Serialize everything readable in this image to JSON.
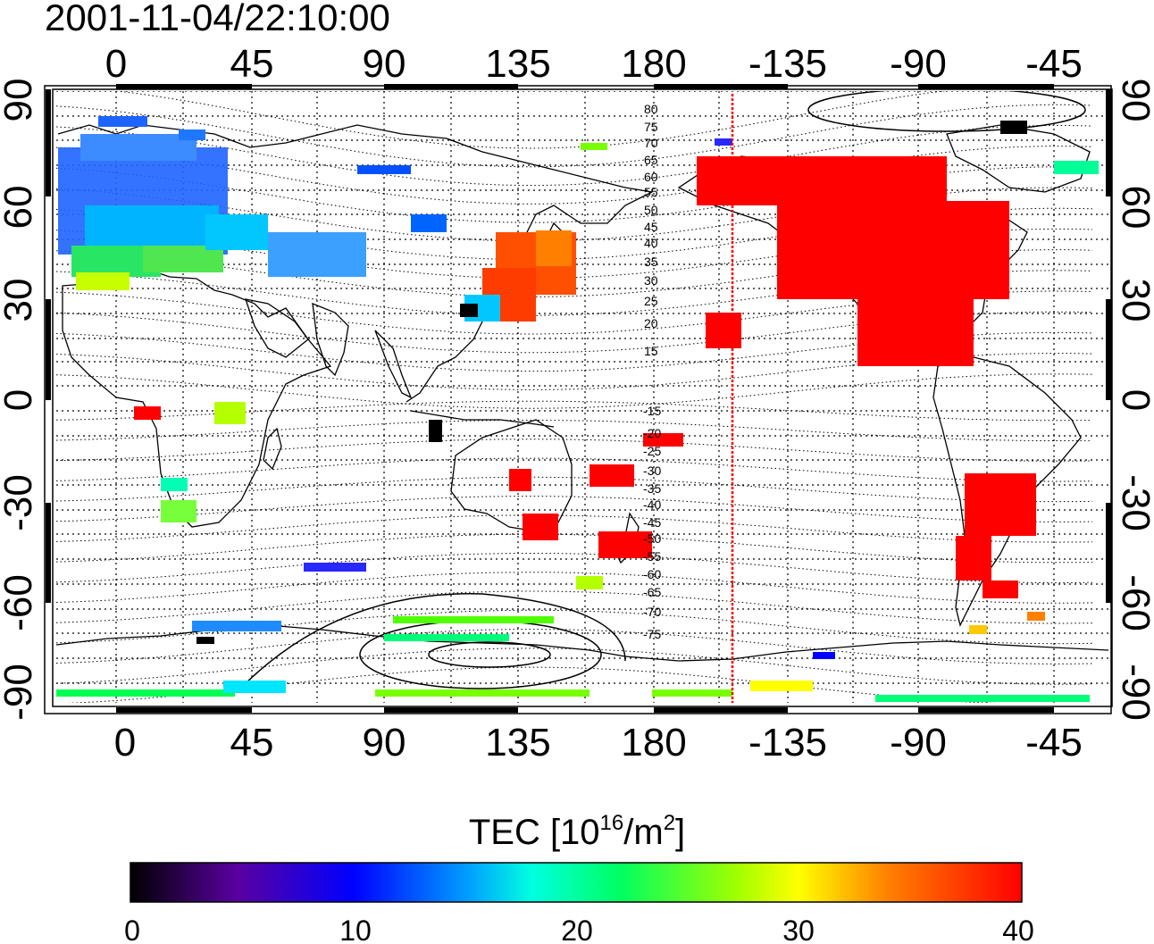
{
  "title": "2001-11-04/22:10:00",
  "map": {
    "top_lon_labels": [
      "0",
      "45",
      "90",
      "135",
      "180",
      "-135",
      "-90",
      "-45"
    ],
    "bottom_lon_labels": [
      "0",
      "45",
      "90",
      "135",
      "180",
      "-135",
      "-90",
      "-45"
    ],
    "left_lat_labels": [
      "90",
      "60",
      "30",
      "0",
      "-30",
      "-60",
      "-90"
    ],
    "right_lat_labels": [
      "90",
      "60",
      "30",
      "0",
      "-30",
      "-60",
      "-90"
    ],
    "grid": true,
    "terminator_line_color": "#ff0000",
    "contour_labels_north": [
      "80",
      "75",
      "70",
      "65",
      "60",
      "55",
      "50",
      "45",
      "40",
      "35",
      "30",
      "25",
      "20",
      "15"
    ],
    "contour_labels_south": [
      "-15",
      "-20",
      "-25",
      "-30",
      "-35",
      "-40",
      "-45",
      "-50",
      "-55",
      "-60",
      "-65",
      "-70",
      "-75"
    ]
  },
  "colorbar": {
    "label_main": "TEC  [10",
    "label_sup1": "16",
    "label_mid": "/m",
    "label_sup2": "2",
    "label_end": "]",
    "ticks": [
      "0",
      "10",
      "20",
      "30",
      "40"
    ],
    "min": 0,
    "max": 40,
    "colors": [
      "#000000",
      "#5a00a0",
      "#0000ff",
      "#00c8ff",
      "#00ff64",
      "#c8ff00",
      "#ffff00",
      "#ff7800",
      "#ff0000"
    ]
  }
}
